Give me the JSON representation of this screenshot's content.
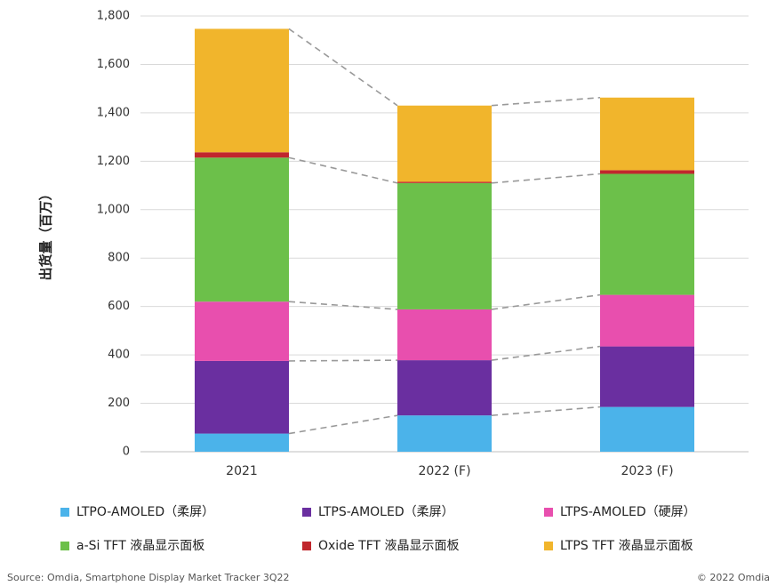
{
  "chart_data": {
    "type": "stacked_bar",
    "y_label": "出货量（百万）",
    "categories": [
      "2021",
      "2022 (F)",
      "2023 (F)"
    ],
    "series": [
      {
        "name": "LTPO-AMOLED（柔屏）",
        "color": "#4bb3ea",
        "values": [
          75,
          150,
          185
        ]
      },
      {
        "name": "LTPS-AMOLED（柔屏）",
        "color": "#6a2fa0",
        "values": [
          300,
          228,
          250
        ]
      },
      {
        "name": "LTPS-AMOLED（硬屏）",
        "color": "#e84fae",
        "values": [
          245,
          210,
          213
        ]
      },
      {
        "name": "a-Si TFT 液晶显示面板",
        "color": "#6cc04a",
        "values": [
          595,
          522,
          500
        ]
      },
      {
        "name": "Oxide TFT 液晶显示面板",
        "color": "#c0272d",
        "values": [
          22,
          5,
          15
        ]
      },
      {
        "name": "LTPS TFT 液晶显示面板",
        "color": "#f1b52c",
        "values": [
          510,
          315,
          300
        ]
      }
    ],
    "ylim": [
      0,
      1800
    ],
    "yticks": [
      0,
      200,
      400,
      600,
      800,
      {
        "value": 1000,
        "label": "1,000"
      },
      {
        "value": 1200,
        "label": "1,200"
      },
      {
        "value": 1400,
        "label": "1,400"
      },
      {
        "value": 1600,
        "label": "1,600"
      },
      {
        "value": 1800,
        "label": "1,800"
      }
    ],
    "grid": true,
    "source": "Source: Omdia, Smartphone Display Market Tracker 3Q22",
    "copyright": "© 2022 Omdia"
  }
}
